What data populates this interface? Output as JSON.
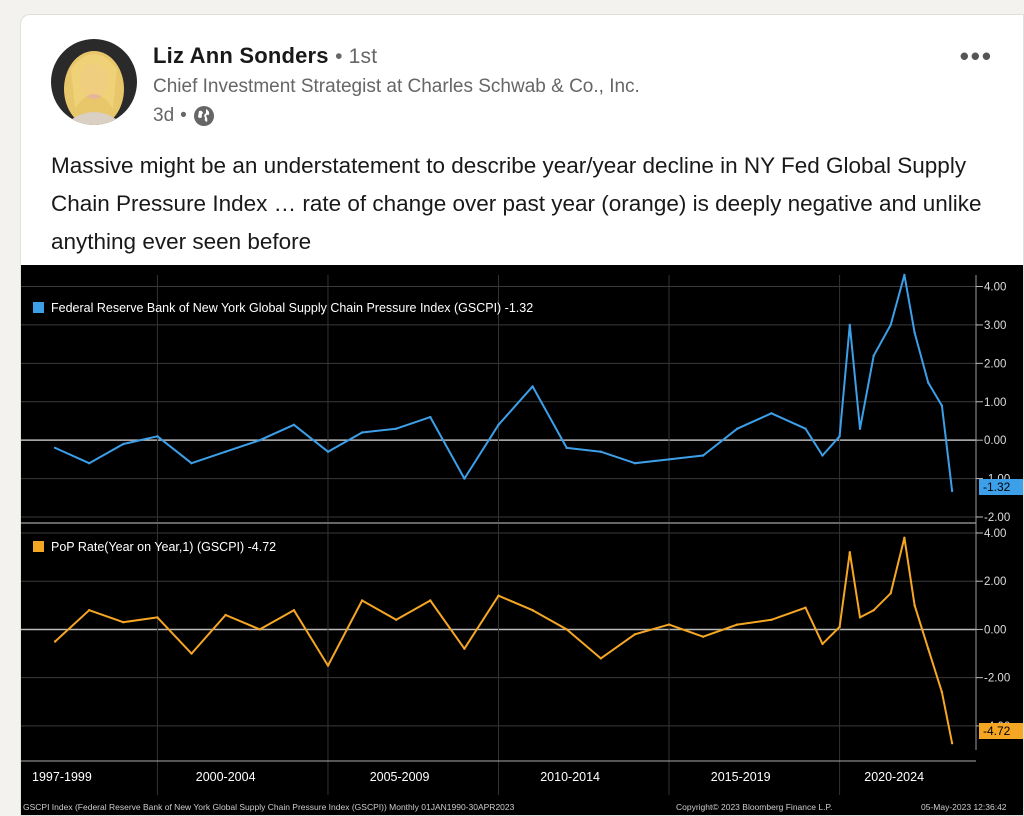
{
  "post": {
    "author_name": "Liz Ann Sonders",
    "degree": "1st",
    "headline": "Chief Investment Strategist at Charles Schwab & Co., Inc.",
    "time_ago": "3d",
    "text": "Massive might be an understatement to describe year/year decline in NY Fed Global Supply Chain Pressure Index … rate of change over past year (orange) is deeply negative and unlike anything ever seen before"
  },
  "chart_data": [
    {
      "type": "line",
      "title": "",
      "legend": "Federal Reserve Bank of New York Global Supply Chain Pressure Index (GSCPI) -1.32",
      "color": "#3c9fe8",
      "yticks": [
        "4.00",
        "3.00",
        "2.00",
        "1.00",
        "0.00",
        "-1.00",
        "-2.00"
      ],
      "ylim": [
        -2,
        4.3
      ],
      "last_value_label": "-1.32",
      "x": [
        1997.0,
        1998.0,
        1999.0,
        2000.0,
        2001.0,
        2002.0,
        2003.0,
        2004.0,
        2005.0,
        2006.0,
        2007.0,
        2008.0,
        2009.0,
        2010.0,
        2011.0,
        2012.0,
        2013.0,
        2014.0,
        2015.0,
        2016.0,
        2017.0,
        2018.0,
        2019.0,
        2019.5,
        2020.0,
        2020.3,
        2020.6,
        2021.0,
        2021.5,
        2021.9,
        2022.2,
        2022.6,
        2023.0,
        2023.3
      ],
      "y": [
        -0.2,
        -0.6,
        -0.1,
        0.1,
        -0.6,
        -0.3,
        0.0,
        0.4,
        -0.3,
        0.2,
        0.3,
        0.6,
        -1.0,
        0.4,
        1.4,
        -0.2,
        -0.3,
        -0.6,
        -0.5,
        -0.4,
        0.3,
        0.7,
        0.3,
        -0.4,
        0.1,
        3.0,
        0.3,
        2.2,
        3.0,
        4.3,
        2.8,
        1.5,
        0.9,
        -1.32
      ]
    },
    {
      "type": "line",
      "title": "",
      "legend": "PoP Rate(Year on Year,1) (GSCPI) -4.72",
      "color": "#f5a623",
      "yticks": [
        "4.00",
        "2.00",
        "0.00",
        "-2.00",
        "-4.00"
      ],
      "ylim": [
        -5,
        4
      ],
      "last_value_label": "-4.72",
      "x": [
        1997.0,
        1998.0,
        1999.0,
        2000.0,
        2001.0,
        2002.0,
        2003.0,
        2004.0,
        2005.0,
        2006.0,
        2007.0,
        2008.0,
        2009.0,
        2010.0,
        2011.0,
        2012.0,
        2013.0,
        2014.0,
        2015.0,
        2016.0,
        2017.0,
        2018.0,
        2019.0,
        2019.5,
        2020.0,
        2020.3,
        2020.6,
        2021.0,
        2021.5,
        2021.9,
        2022.2,
        2022.6,
        2023.0,
        2023.3
      ],
      "y": [
        -0.5,
        0.8,
        0.3,
        0.5,
        -1.0,
        0.6,
        0.0,
        0.8,
        -1.5,
        1.2,
        0.4,
        1.2,
        -0.8,
        1.4,
        0.8,
        0.0,
        -1.2,
        -0.2,
        0.2,
        -0.3,
        0.2,
        0.4,
        0.9,
        -0.6,
        0.1,
        3.2,
        0.5,
        0.8,
        1.5,
        3.8,
        1.0,
        -0.8,
        -2.6,
        -4.72
      ]
    }
  ],
  "x_labels": [
    "1997-1999",
    "2000-2004",
    "2005-2009",
    "2010-2014",
    "2015-2019",
    "2020-2024"
  ],
  "footer_left": "GSCPI Index (Federal Reserve Bank of New York Global Supply Chain Pressure Index (GSCPI)) Monthly 01JAN1990-30APR2023",
  "footer_mid": "Copyright© 2023 Bloomberg Finance L.P.",
  "footer_right": "05-May-2023 12:36:42",
  "colors": {
    "name": "#191919",
    "secondary": "#666666",
    "blue": "#3c9fe8",
    "orange": "#f5a623"
  }
}
